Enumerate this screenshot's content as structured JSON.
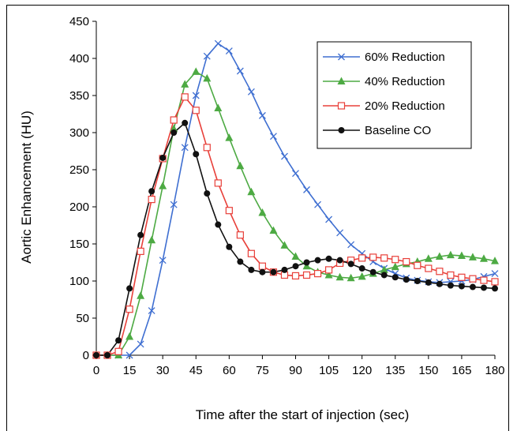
{
  "chart_data": {
    "type": "line",
    "title": "",
    "xlabel": "Time after the start of injection (sec)",
    "ylabel": "Aortic Enhancement (HU)",
    "xlim": [
      0,
      180
    ],
    "ylim": [
      0,
      450
    ],
    "xticks": [
      "0",
      "15",
      "30",
      "45",
      "60",
      "75",
      "90",
      "105",
      "120",
      "135",
      "150",
      "165",
      "180"
    ],
    "yticks": [
      "0",
      "50",
      "100",
      "150",
      "200",
      "250",
      "300",
      "350",
      "400",
      "450"
    ],
    "grid": false,
    "legend": "top-right",
    "series": [
      {
        "name": "60% Reduction",
        "color": "#3f6fd1",
        "marker": "x",
        "x": [
          0,
          5,
          10,
          15,
          20,
          25,
          30,
          35,
          40,
          45,
          50,
          55,
          60,
          65,
          70,
          75,
          80,
          85,
          90,
          95,
          100,
          105,
          110,
          115,
          120,
          125,
          130,
          135,
          140,
          145,
          150,
          155,
          160,
          165,
          170,
          175,
          180
        ],
        "y": [
          0,
          0,
          0,
          0,
          15,
          60,
          128,
          203,
          280,
          350,
          403,
          420,
          410,
          383,
          355,
          323,
          295,
          268,
          245,
          223,
          203,
          183,
          165,
          149,
          137,
          126,
          117,
          110,
          104,
          101,
          99,
          98,
          99,
          100,
          102,
          106,
          110
        ]
      },
      {
        "name": "40% Reduction",
        "color": "#4daa43",
        "marker": "triangle",
        "x": [
          0,
          5,
          10,
          15,
          20,
          25,
          30,
          35,
          40,
          45,
          50,
          55,
          60,
          65,
          70,
          75,
          80,
          85,
          90,
          95,
          100,
          105,
          110,
          115,
          120,
          125,
          130,
          135,
          140,
          145,
          150,
          155,
          160,
          165,
          170,
          175,
          180
        ],
        "y": [
          0,
          0,
          0,
          25,
          80,
          155,
          228,
          305,
          365,
          382,
          373,
          333,
          293,
          255,
          220,
          192,
          168,
          148,
          133,
          120,
          112,
          108,
          105,
          104,
          106,
          110,
          115,
          119,
          123,
          126,
          130,
          133,
          135,
          134,
          132,
          130,
          127
        ]
      },
      {
        "name": "20% Reduction",
        "color": "#e8403a",
        "marker": "square",
        "x": [
          0,
          5,
          10,
          15,
          20,
          25,
          30,
          35,
          40,
          45,
          50,
          55,
          60,
          65,
          70,
          75,
          80,
          85,
          90,
          95,
          100,
          105,
          110,
          115,
          120,
          125,
          130,
          135,
          140,
          145,
          150,
          155,
          160,
          165,
          170,
          175,
          180
        ],
        "y": [
          0,
          0,
          5,
          62,
          140,
          210,
          265,
          317,
          348,
          330,
          280,
          232,
          195,
          162,
          137,
          120,
          112,
          108,
          107,
          108,
          110,
          115,
          124,
          128,
          131,
          132,
          131,
          129,
          126,
          121,
          117,
          113,
          108,
          105,
          103,
          101,
          99
        ]
      },
      {
        "name": "Baseline CO",
        "color": "#111111",
        "marker": "circle",
        "x": [
          0,
          5,
          10,
          15,
          20,
          25,
          30,
          35,
          40,
          45,
          50,
          55,
          60,
          65,
          70,
          75,
          80,
          85,
          90,
          95,
          100,
          105,
          110,
          115,
          120,
          125,
          130,
          135,
          140,
          145,
          150,
          155,
          160,
          165,
          170,
          175,
          180
        ],
        "y": [
          0,
          0,
          20,
          90,
          162,
          221,
          266,
          300,
          313,
          271,
          218,
          176,
          146,
          126,
          115,
          112,
          112,
          115,
          120,
          125,
          128,
          130,
          128,
          123,
          117,
          112,
          108,
          105,
          102,
          100,
          98,
          96,
          94,
          93,
          92,
          91,
          90
        ]
      }
    ]
  }
}
